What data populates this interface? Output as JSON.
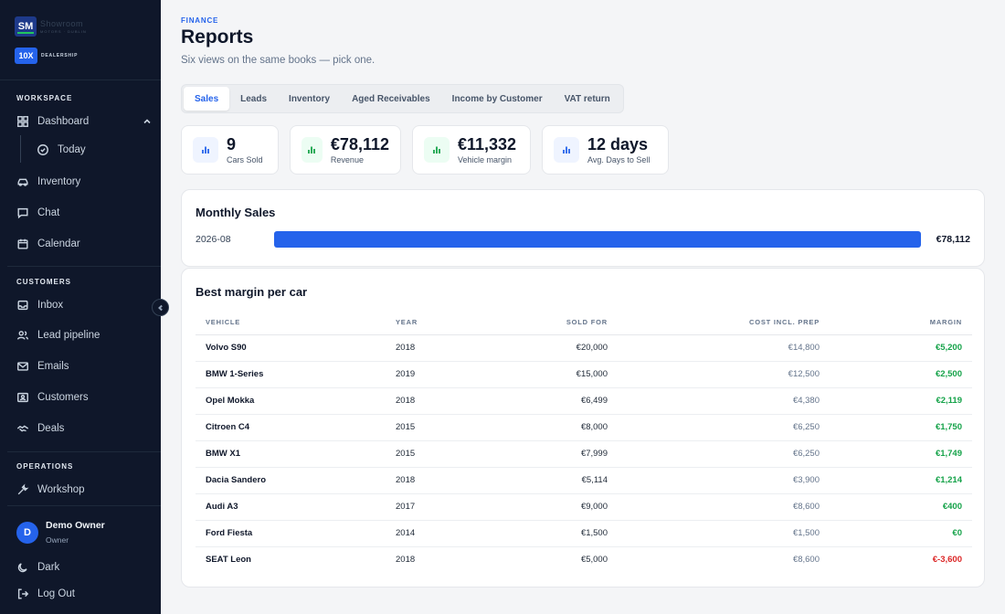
{
  "brand": {
    "logo_text": "SM",
    "name": "Showroom",
    "tagline": "MOTORS · DUBLIN",
    "badge": "10X",
    "badge_sub": "DEALERSHIP"
  },
  "sidebar": {
    "sections": {
      "workspace": "WORKSPACE",
      "customers": "CUSTOMERS",
      "operations": "OPERATIONS"
    },
    "dashboard": "Dashboard",
    "today": "Today",
    "inventory": "Inventory",
    "chat": "Chat",
    "calendar": "Calendar",
    "inbox": "Inbox",
    "lead_pipeline": "Lead pipeline",
    "emails": "Emails",
    "customers": "Customers",
    "deals": "Deals",
    "workshop": "Workshop",
    "user": {
      "initial": "D",
      "name": "Demo Owner",
      "role": "Owner"
    },
    "dark": "Dark",
    "logout": "Log Out"
  },
  "header": {
    "eyebrow": "FINANCE",
    "title": "Reports",
    "subtitle": "Six views on the same books — pick one."
  },
  "tabs": [
    "Sales",
    "Leads",
    "Inventory",
    "Aged Receivables",
    "Income by Customer",
    "VAT return"
  ],
  "kpis": [
    {
      "value": "9",
      "label": "Cars Sold",
      "color": "blue"
    },
    {
      "value": "€78,112",
      "label": "Revenue",
      "color": "green"
    },
    {
      "value": "€11,332",
      "label": "Vehicle margin",
      "color": "green"
    },
    {
      "value": "12 days",
      "label": "Avg. Days to Sell",
      "color": "blue"
    }
  ],
  "monthly": {
    "title": "Monthly Sales",
    "period": "2026-08",
    "value": "€78,112",
    "fill_fraction": 1.0,
    "color": "#2563eb"
  },
  "margin_table": {
    "title": "Best margin per car",
    "headers": [
      "VEHICLE",
      "YEAR",
      "SOLD FOR",
      "COST INCL. PREP",
      "MARGIN"
    ],
    "rows": [
      [
        "Volvo S90",
        "2018",
        "€20,000",
        "€14,800",
        "€5,200"
      ],
      [
        "BMW 1-Series",
        "2019",
        "€15,000",
        "€12,500",
        "€2,500"
      ],
      [
        "Opel Mokka",
        "2018",
        "€6,499",
        "€4,380",
        "€2,119"
      ],
      [
        "Citroen C4",
        "2015",
        "€8,000",
        "€6,250",
        "€1,750"
      ],
      [
        "BMW X1",
        "2015",
        "€7,999",
        "€6,250",
        "€1,749"
      ],
      [
        "Dacia Sandero",
        "2018",
        "€5,114",
        "€3,900",
        "€1,214"
      ],
      [
        "Audi A3",
        "2017",
        "€9,000",
        "€8,600",
        "€400"
      ],
      [
        "Ford Fiesta",
        "2014",
        "€1,500",
        "€1,500",
        "€0"
      ],
      [
        "SEAT Leon",
        "2018",
        "€5,000",
        "€8,600",
        "€-3,600"
      ]
    ]
  }
}
